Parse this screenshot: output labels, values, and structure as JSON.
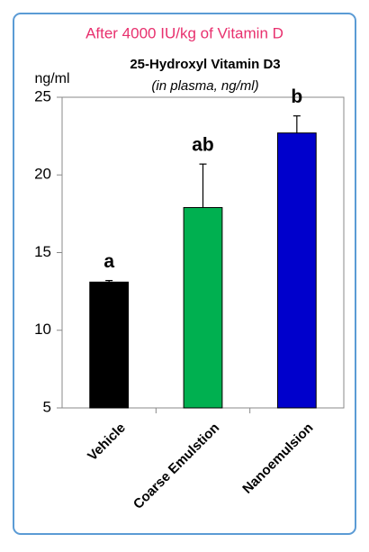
{
  "chart_data": {
    "type": "bar",
    "header": "After 4000 IU/kg of Vitamin D",
    "title": "25-Hydroxyl Vitamin D3",
    "subtitle": "(in plasma, ng/ml)",
    "y_label": "ng/ml",
    "categories": [
      "Vehicle",
      "Coarse Emulstion",
      "Nanoemulsion"
    ],
    "values": [
      13.1,
      17.9,
      22.7
    ],
    "errors": [
      0.1,
      2.8,
      1.1
    ],
    "colors": [
      "#000000",
      "#00b050",
      "#0000cc"
    ],
    "significance_labels": [
      "a",
      "ab",
      "b"
    ],
    "ylim": [
      5,
      25
    ],
    "yticks": [
      5,
      10,
      15,
      20,
      25
    ],
    "grid": false
  }
}
